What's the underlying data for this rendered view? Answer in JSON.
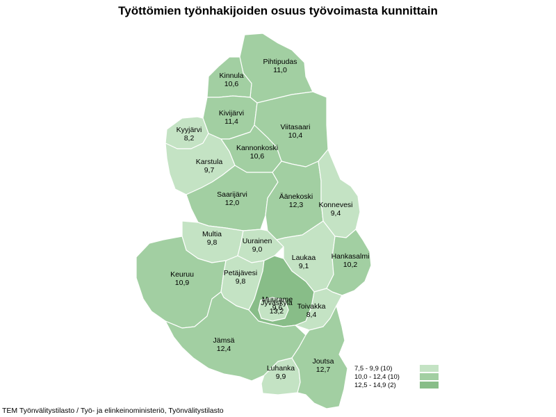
{
  "title": "Työttömien työnhakijoiden osuus työvoimasta kunnittain",
  "source": "TEM Työnvälitystilasto / Työ- ja elinkeinoministeriö, Työnvälitystilasto",
  "colors": {
    "class1": "#c4e3c4",
    "class2": "#a2cfa2",
    "class3": "#88bd88"
  },
  "legend": [
    {
      "label": "7,5 - 9,9 (10)",
      "color": "#c4e3c4"
    },
    {
      "label": "10,0 - 12,4 (10)",
      "color": "#a2cfa2"
    },
    {
      "label": "12,5 - 14,9 (2)",
      "color": "#88bd88"
    }
  ],
  "municipalities": [
    {
      "name": "Pihtipudas",
      "value": "11,0"
    },
    {
      "name": "Kinnula",
      "value": "10,6"
    },
    {
      "name": "Kivijärvi",
      "value": "11,4"
    },
    {
      "name": "Viitasaari",
      "value": "10,4"
    },
    {
      "name": "Kyyjärvi",
      "value": "8,2"
    },
    {
      "name": "Kannonkoski",
      "value": "10,6"
    },
    {
      "name": "Karstula",
      "value": "9,7"
    },
    {
      "name": "Saarijärvi",
      "value": "12,0"
    },
    {
      "name": "Äänekoski",
      "value": "12,3"
    },
    {
      "name": "Konnevesi",
      "value": "9,4"
    },
    {
      "name": "Multia",
      "value": "9,8"
    },
    {
      "name": "Uurainen",
      "value": "9,0"
    },
    {
      "name": "Laukaa",
      "value": "9,1"
    },
    {
      "name": "Hankasalmi",
      "value": "10,2"
    },
    {
      "name": "Keuruu",
      "value": "10,9"
    },
    {
      "name": "Petäjävesi",
      "value": "9,8"
    },
    {
      "name": "Muurame",
      "value": "9,6"
    },
    {
      "name": "Jyväskylä",
      "value": "13,2"
    },
    {
      "name": "Toivakka",
      "value": "8,4"
    },
    {
      "name": "Jämsä",
      "value": "12,4"
    },
    {
      "name": "Luhanka",
      "value": "9,9"
    },
    {
      "name": "Joutsa",
      "value": "12,7"
    }
  ]
}
